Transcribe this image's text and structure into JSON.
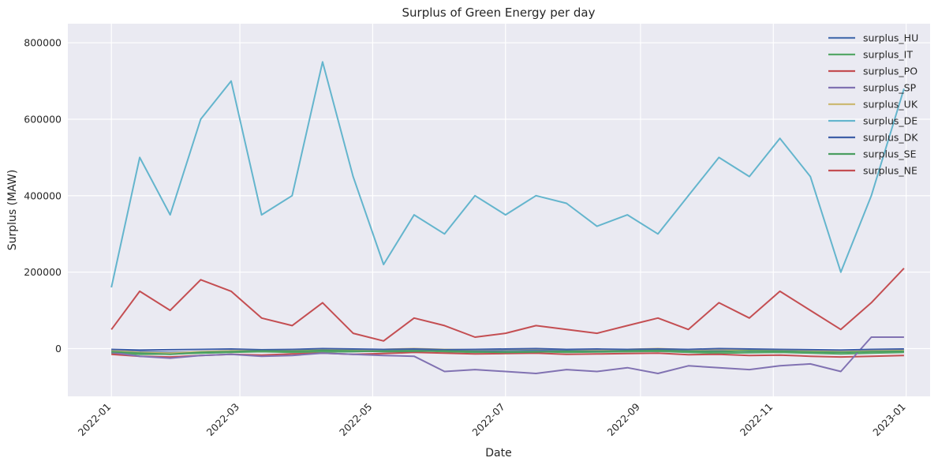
{
  "chart_data": {
    "type": "line",
    "title": "Surplus of Green Energy per day",
    "xlabel": "Date",
    "ylabel": "Surplus (MAW)",
    "x_range": [
      "2021-12-12",
      "2023-01-12"
    ],
    "x_ticks": [
      "2022-01",
      "2022-03",
      "2022-05",
      "2022-07",
      "2022-09",
      "2022-11",
      "2023-01"
    ],
    "ylim": [
      -125000,
      850000
    ],
    "y_ticks": [
      0,
      200000,
      400000,
      600000,
      800000
    ],
    "y_tick_labels": [
      "0",
      "200000",
      "400000",
      "600000",
      "800000"
    ],
    "grid": true,
    "legend_placement": "top-right",
    "point_dates": [
      "2022-01-01",
      "2022-01-14",
      "2022-01-28",
      "2022-02-11",
      "2022-02-25",
      "2022-03-11",
      "2022-03-25",
      "2022-04-08",
      "2022-04-22",
      "2022-05-06",
      "2022-05-20",
      "2022-06-03",
      "2022-06-17",
      "2022-07-01",
      "2022-07-15",
      "2022-07-29",
      "2022-08-12",
      "2022-08-26",
      "2022-09-09",
      "2022-09-23",
      "2022-10-07",
      "2022-10-21",
      "2022-11-04",
      "2022-11-18",
      "2022-12-02",
      "2022-12-16",
      "2022-12-31"
    ],
    "series": [
      {
        "name": "surplus_HU",
        "color": "#4c72b0",
        "values": [
          -5000,
          -8000,
          -10000,
          -9000,
          -6000,
          -7000,
          -5000,
          -4000,
          -6000,
          -3000,
          -4000,
          -5000,
          -6000,
          -5000,
          -4000,
          -5000,
          -6000,
          -5000,
          -4000,
          -6000,
          -5000,
          -7000,
          -6000,
          -8000,
          -9000,
          -7000,
          -8000
        ]
      },
      {
        "name": "surplus_IT",
        "color": "#55a868",
        "values": [
          -12000,
          -15000,
          -14000,
          -12000,
          -10000,
          -8000,
          -10000,
          -9000,
          -8000,
          -6000,
          -5000,
          -8000,
          -10000,
          -9000,
          -8000,
          -10000,
          -9000,
          -8000,
          -7000,
          -10000,
          -12000,
          -11000,
          -10000,
          -12000,
          -14000,
          -12000,
          -10000
        ]
      },
      {
        "name": "surplus_PO",
        "color": "#c44e52",
        "values": [
          -15000,
          -20000,
          -22000,
          -18000,
          -15000,
          -17000,
          -14000,
          -12000,
          -15000,
          -13000,
          -10000,
          -12000,
          -14000,
          -13000,
          -12000,
          -15000,
          -14000,
          -13000,
          -12000,
          -16000,
          -15000,
          -18000,
          -17000,
          -20000,
          -22000,
          -20000,
          -18000
        ]
      },
      {
        "name": "surplus_SP",
        "color": "#8172b2",
        "values": [
          -10000,
          -20000,
          -25000,
          -18000,
          -15000,
          -20000,
          -18000,
          -12000,
          -15000,
          -18000,
          -20000,
          -60000,
          -55000,
          -60000,
          -65000,
          -55000,
          -60000,
          -50000,
          -65000,
          -45000,
          -50000,
          -55000,
          -45000,
          -40000,
          -60000,
          30000,
          30000
        ]
      },
      {
        "name": "surplus_UK",
        "color": "#ccb974",
        "values": [
          -5000,
          -10000,
          -12000,
          -8000,
          -6000,
          -5000,
          -4000,
          -2000,
          -3000,
          -2000,
          0,
          -2000,
          -3000,
          -2000,
          -1000,
          -2000,
          -3000,
          -2000,
          0,
          -3000,
          -2000,
          -4000,
          -3000,
          -5000,
          -8000,
          -6000,
          -5000
        ]
      },
      {
        "name": "surplus_DE",
        "color": "#64b5cd",
        "values": [
          160000,
          500000,
          350000,
          600000,
          700000,
          350000,
          400000,
          750000,
          450000,
          220000,
          350000,
          300000,
          400000,
          350000,
          400000,
          380000,
          320000,
          350000,
          300000,
          400000,
          500000,
          450000,
          550000,
          450000,
          200000,
          400000,
          680000
        ]
      },
      {
        "name": "surplus_DK",
        "color": "#3f5fa8",
        "values": [
          -2000,
          -4000,
          -3000,
          -2000,
          -1000,
          -3000,
          -2000,
          0,
          -1000,
          -2000,
          -1000,
          -3000,
          -2000,
          -1000,
          0,
          -2000,
          -1000,
          -2000,
          -1000,
          -2000,
          0,
          -1000,
          -2000,
          -3000,
          -4000,
          -2000,
          -1000
        ]
      },
      {
        "name": "surplus_SE",
        "color": "#4a9e60",
        "values": [
          -8000,
          -12000,
          -15000,
          -10000,
          -8000,
          -6000,
          -7000,
          -5000,
          -6000,
          -8000,
          -7000,
          -6000,
          -8000,
          -10000,
          -9000,
          -7000,
          -8000,
          -6000,
          -5000,
          -7000,
          -8000,
          -6000,
          -7000,
          -9000,
          -10000,
          -8000,
          -7000
        ]
      },
      {
        "name": "surplus_NE",
        "color": "#c44e52",
        "values": [
          50000,
          150000,
          100000,
          180000,
          150000,
          80000,
          60000,
          120000,
          40000,
          20000,
          80000,
          60000,
          30000,
          40000,
          60000,
          50000,
          40000,
          60000,
          80000,
          50000,
          120000,
          80000,
          150000,
          100000,
          50000,
          120000,
          210000
        ]
      }
    ]
  }
}
